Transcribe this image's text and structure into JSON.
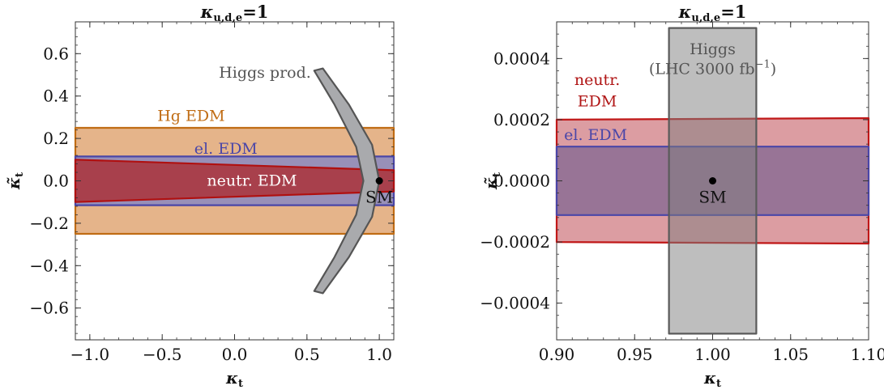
{
  "chart_data": [
    {
      "type": "area",
      "title_symbol": "κ",
      "title_sub": "u,d,e",
      "title_rest": "=1",
      "xlabel_symbol": "κ",
      "xlabel_sub": "t",
      "ylabel_symbol": "κ̃",
      "ylabel_sub": "t",
      "xlim": [
        -1.1,
        1.1
      ],
      "ylim": [
        -0.75,
        0.75
      ],
      "xticks": [
        {
          "v": -1.0,
          "label": "−1.0"
        },
        {
          "v": -0.5,
          "label": "−0.5"
        },
        {
          "v": 0.0,
          "label": "0.0"
        },
        {
          "v": 0.5,
          "label": "0.5"
        },
        {
          "v": 1.0,
          "label": "1.0"
        }
      ],
      "yticks": [
        {
          "v": 0.6,
          "label": "0.6"
        },
        {
          "v": 0.4,
          "label": "0.4"
        },
        {
          "v": 0.2,
          "label": "0.2"
        },
        {
          "v": 0.0,
          "label": "0.0"
        },
        {
          "v": -0.2,
          "label": "−0.2"
        },
        {
          "v": -0.4,
          "label": "−0.4"
        },
        {
          "v": -0.6,
          "label": "−0.6"
        }
      ],
      "regions": [
        {
          "label": "Hg EDM",
          "fill": "#e5b48a",
          "stroke": "#c06c14",
          "points": [
            [
              -1.1,
              0.25
            ],
            [
              1.1,
              0.25
            ],
            [
              1.1,
              -0.25
            ],
            [
              -1.1,
              -0.25
            ]
          ]
        },
        {
          "label": "el. EDM",
          "fill": "#9890b8",
          "stroke": "#4a46a8",
          "points": [
            [
              -1.1,
              0.115
            ],
            [
              1.1,
              0.115
            ],
            [
              1.1,
              -0.115
            ],
            [
              -1.1,
              -0.115
            ]
          ]
        },
        {
          "label": "neutr. EDM",
          "fill": "#a8404c",
          "stroke": "#b01010",
          "points": [
            [
              -1.1,
              -0.1
            ],
            [
              1.1,
              -0.05
            ],
            [
              1.1,
              0.05
            ],
            [
              -1.1,
              0.1
            ]
          ]
        },
        {
          "label": "Higgs prod.",
          "fill": "#a9aaad",
          "stroke": "#555555",
          "points": [
            [
              0.55,
              0.52
            ],
            [
              0.69,
              0.36
            ],
            [
              0.84,
              0.16
            ],
            [
              0.89,
              0.0
            ],
            [
              0.84,
              -0.16
            ],
            [
              0.69,
              -0.36
            ],
            [
              0.55,
              -0.52
            ],
            [
              0.61,
              -0.53
            ],
            [
              0.79,
              -0.36
            ],
            [
              0.95,
              -0.17
            ],
            [
              1.0,
              0.0
            ],
            [
              0.95,
              0.17
            ],
            [
              0.79,
              0.36
            ],
            [
              0.61,
              0.53
            ]
          ]
        }
      ],
      "labels": [
        {
          "text": "Hg EDM",
          "x": -0.3,
          "y": 0.305,
          "color": "#c06c14"
        },
        {
          "text": "el. EDM",
          "x": -0.06,
          "y": 0.15,
          "color": "#4a46a8"
        },
        {
          "text": "neutr. EDM",
          "x": 0.12,
          "y": 0.0,
          "color": "#ffffff"
        },
        {
          "text": "Higgs prod.",
          "x": 0.21,
          "y": 0.51,
          "color": "#555555"
        }
      ],
      "point": {
        "x": 1.0,
        "y": 0.0,
        "label": "SM"
      }
    },
    {
      "type": "area",
      "title_symbol": "κ",
      "title_sub": "u,d,e",
      "title_rest": "=1",
      "xlabel_symbol": "κ",
      "xlabel_sub": "t",
      "ylabel_symbol": "κ̃",
      "ylabel_sub": "t",
      "xlim": [
        0.9,
        1.1
      ],
      "ylim": [
        -0.00052,
        0.00052
      ],
      "xticks": [
        {
          "v": 0.9,
          "label": "0.90"
        },
        {
          "v": 0.95,
          "label": "0.95"
        },
        {
          "v": 1.0,
          "label": "1.00"
        },
        {
          "v": 1.05,
          "label": "1.05"
        },
        {
          "v": 1.1,
          "label": "1.10"
        }
      ],
      "yticks": [
        {
          "v": 0.0004,
          "label": "0.0004"
        },
        {
          "v": 0.0002,
          "label": "0.0002"
        },
        {
          "v": 0.0,
          "label": "0.0000"
        },
        {
          "v": -0.0002,
          "label": "−0.0002"
        },
        {
          "v": -0.0004,
          "label": "−0.0004"
        }
      ],
      "regions": [
        {
          "label": "neutr. EDM",
          "fill": "#dc9da2",
          "stroke": "#c01818",
          "points": [
            [
              0.9,
              0.0002
            ],
            [
              1.1,
              0.000205
            ],
            [
              1.1,
              -0.000205
            ],
            [
              0.9,
              -0.0002
            ]
          ]
        },
        {
          "label": "el. EDM",
          "fill": "#987496",
          "stroke": "#4a46a8",
          "points": [
            [
              0.9,
              0.000112
            ],
            [
              1.1,
              0.000112
            ],
            [
              1.1,
              -0.000112
            ],
            [
              0.9,
              -0.000112
            ]
          ]
        },
        {
          "label": "Higgs",
          "fill": "rgba(125,125,125,0.5)",
          "stroke": "#5a5a5a",
          "points": [
            [
              0.972,
              0.0005
            ],
            [
              1.028,
              0.0005
            ],
            [
              1.028,
              -0.0005
            ],
            [
              0.972,
              -0.0005
            ]
          ]
        }
      ],
      "labels": [
        {
          "text": "neutr.",
          "x": 0.926,
          "y": 0.00033,
          "color": "#b01414"
        },
        {
          "text": "EDM",
          "x": 0.926,
          "y": 0.00026,
          "color": "#b01414"
        },
        {
          "text": "el. EDM",
          "x": 0.925,
          "y": 0.00015,
          "color": "#4a46a8"
        },
        {
          "text": "Higgs",
          "x": 1.0,
          "y": 0.00043,
          "color": "#555555"
        },
        {
          "text": "(LHC 3000 fb",
          "sup": "−1",
          "after": ")",
          "x": 1.0,
          "y": 0.000365,
          "color": "#555555"
        }
      ],
      "point": {
        "x": 1.0,
        "y": 0.0,
        "label": "SM"
      }
    }
  ]
}
